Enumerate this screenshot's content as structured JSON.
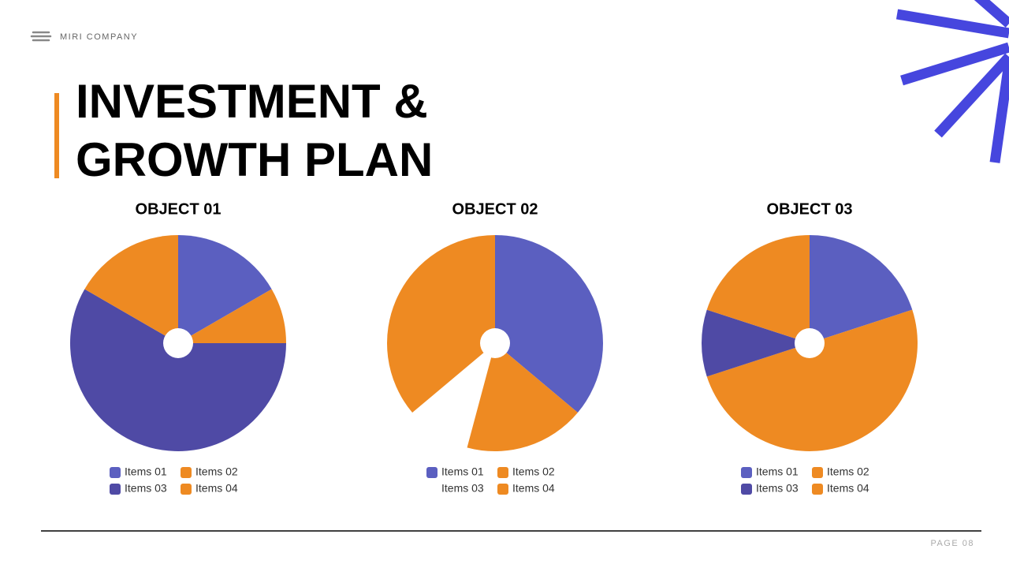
{
  "header": {
    "company": "MIRI COMPANY",
    "title_lines": [
      "INVESTMENT &",
      "GROWTH PLAN"
    ],
    "page": "PAGE 08"
  },
  "chart_data": [
    {
      "type": "pie",
      "title": "OBJECT 01",
      "categories": [
        "Items 01",
        "Items 02",
        "Items 03",
        "Items 04"
      ],
      "values": [
        10,
        5,
        35,
        10
      ],
      "colors": [
        "#5b5fc0",
        "#ee8a22",
        "#4f4aa5",
        "#ee8a22"
      ]
    },
    {
      "type": "pie",
      "title": "OBJECT 02",
      "categories": [
        "Items 01",
        "Items 02",
        "Items 03",
        "Items 04"
      ],
      "values": [
        130,
        65,
        35,
        130
      ],
      "colors": [
        "#5b5fc0",
        "#ee8a22",
        null,
        "#ee8a22"
      ]
    },
    {
      "type": "pie",
      "title": "OBJECT 03",
      "categories": [
        "Items 01",
        "Items 02",
        "Items 03",
        "Items 04"
      ],
      "values": [
        20,
        50,
        10,
        20
      ],
      "colors": [
        "#5b5fc0",
        "#ee8a22",
        "#4f4aa5",
        "#ee8a22"
      ]
    }
  ]
}
